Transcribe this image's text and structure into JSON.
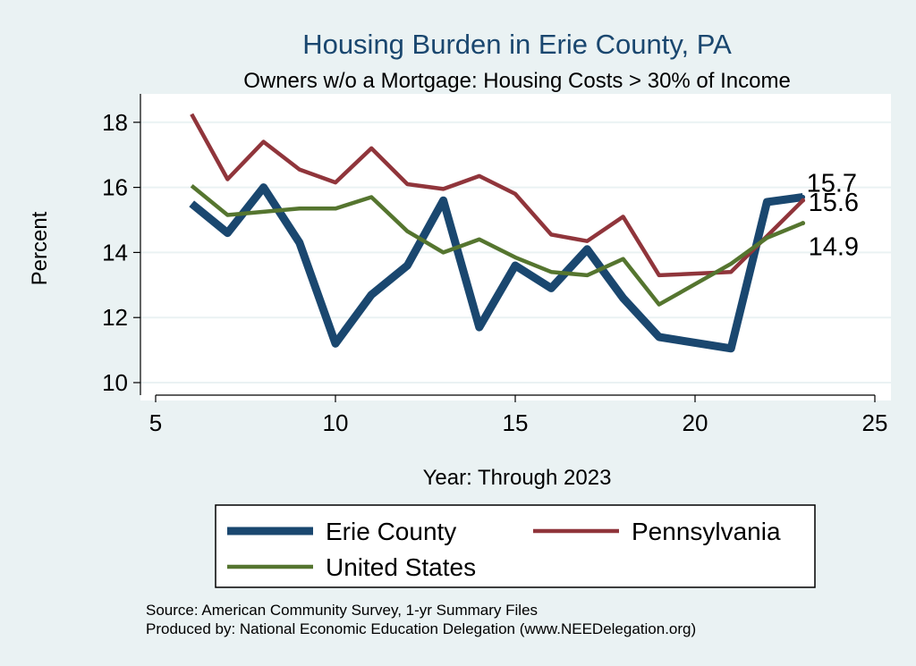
{
  "chart_data": {
    "type": "line",
    "title": "Housing Burden in Erie County, PA",
    "subtitle": "Owners w/o a Mortgage: Housing Costs > 30% of Income",
    "xlabel": "Year: Through 2023",
    "ylabel": "Percent",
    "xlim": [
      4.5,
      25.5
    ],
    "ylim": [
      9.6,
      18.8
    ],
    "xticks": [
      5,
      10,
      15,
      20,
      25
    ],
    "yticks": [
      10,
      12,
      14,
      16,
      18
    ],
    "grid": true,
    "legend_position": "bottom",
    "x": [
      6,
      7,
      8,
      9,
      10,
      11,
      12,
      13,
      14,
      15,
      16,
      17,
      18,
      19,
      21,
      22,
      23
    ],
    "series": [
      {
        "name": "Erie County",
        "color": "#1a476f",
        "values": [
          15.5,
          14.6,
          16.0,
          14.3,
          11.2,
          12.7,
          13.6,
          15.6,
          11.7,
          13.6,
          12.9,
          14.1,
          12.6,
          11.4,
          11.05,
          15.55,
          15.7
        ],
        "end_label": "15.7"
      },
      {
        "name": "Pennsylvania",
        "color": "#90353b",
        "values": [
          18.25,
          16.25,
          17.4,
          16.55,
          16.15,
          17.2,
          16.1,
          15.95,
          16.35,
          15.8,
          14.55,
          14.35,
          15.1,
          13.3,
          13.4,
          14.5,
          15.6
        ],
        "end_label": "15.6"
      },
      {
        "name": "United States",
        "color": "#55752f",
        "values": [
          16.05,
          15.15,
          15.25,
          15.35,
          15.35,
          15.7,
          14.65,
          14.0,
          14.4,
          13.85,
          13.4,
          13.3,
          13.8,
          12.4,
          13.65,
          14.45,
          14.9
        ],
        "end_label": "14.9"
      }
    ],
    "source": "Source: American Community Survey, 1-yr Summary Files",
    "produced_by": "Produced by: National Economic Education Delegation (www.NEEDelegation.org)"
  }
}
